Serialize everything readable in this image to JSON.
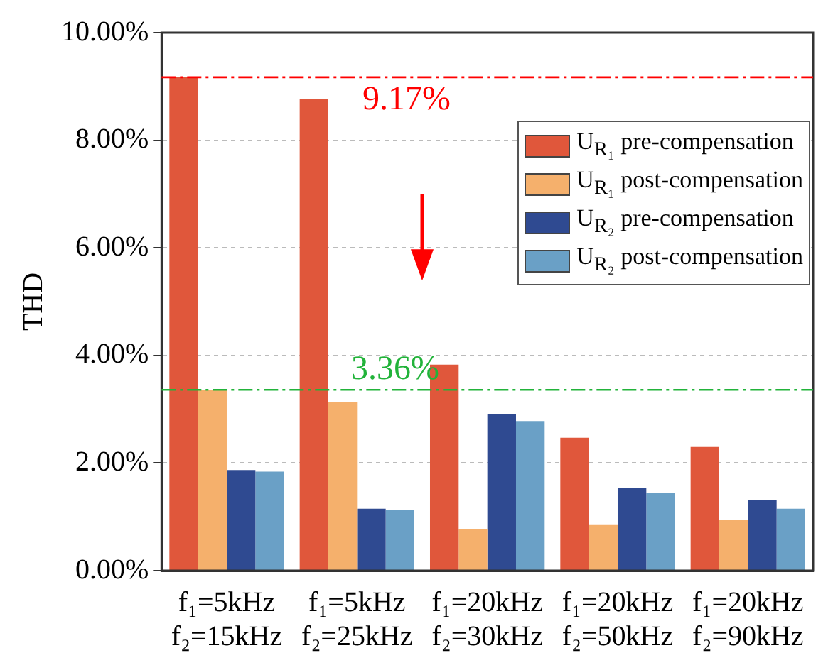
{
  "chart_data": {
    "type": "bar",
    "ylabel": "THD",
    "categories": [
      "f₁=5kHz\nf₂=15kHz",
      "f₁=5kHz\nf₂=25kHz",
      "f₁=20kHz\nf₂=30kHz",
      "f₁=20kHz\nf₂=50kHz",
      "f₁=20kHz\nf₂=90kHz"
    ],
    "series": [
      {
        "name": "U$_{R₁}$ pre-compensation",
        "color": "#e0573b",
        "values": [
          9.17,
          8.77,
          3.83,
          2.47,
          2.3
        ]
      },
      {
        "name": "U$_{R₁}$ post-compensation",
        "color": "#f5b06c",
        "values": [
          3.36,
          3.14,
          0.78,
          0.86,
          0.95
        ]
      },
      {
        "name": "U$_{R₂}$ pre-compensation",
        "color": "#2f4a91",
        "values": [
          1.87,
          1.15,
          2.91,
          1.53,
          1.32
        ]
      },
      {
        "name": "U$_{R₂}$ post-compensation",
        "color": "#6aa0c6",
        "values": [
          1.84,
          1.12,
          2.78,
          1.45,
          1.15
        ]
      }
    ],
    "ylim": [
      0,
      10
    ],
    "yticks": [
      {
        "value": 0,
        "label": "0.00%"
      },
      {
        "value": 2,
        "label": "2.00%"
      },
      {
        "value": 4,
        "label": "4.00%"
      },
      {
        "value": 6,
        "label": "6.00%"
      },
      {
        "value": 8,
        "label": "8.00%"
      },
      {
        "value": 10,
        "label": "10.00%"
      }
    ],
    "grid": "y",
    "legend": "top right",
    "ref_lines": [
      {
        "axis": "y",
        "value": 9.17,
        "label": "9.17%",
        "color": "#ff0000",
        "line_style": "dashed"
      },
      {
        "axis": "y",
        "value": 3.36,
        "label": "3.36%",
        "color": "#22b33a",
        "line_style": "dashed"
      }
    ]
  }
}
